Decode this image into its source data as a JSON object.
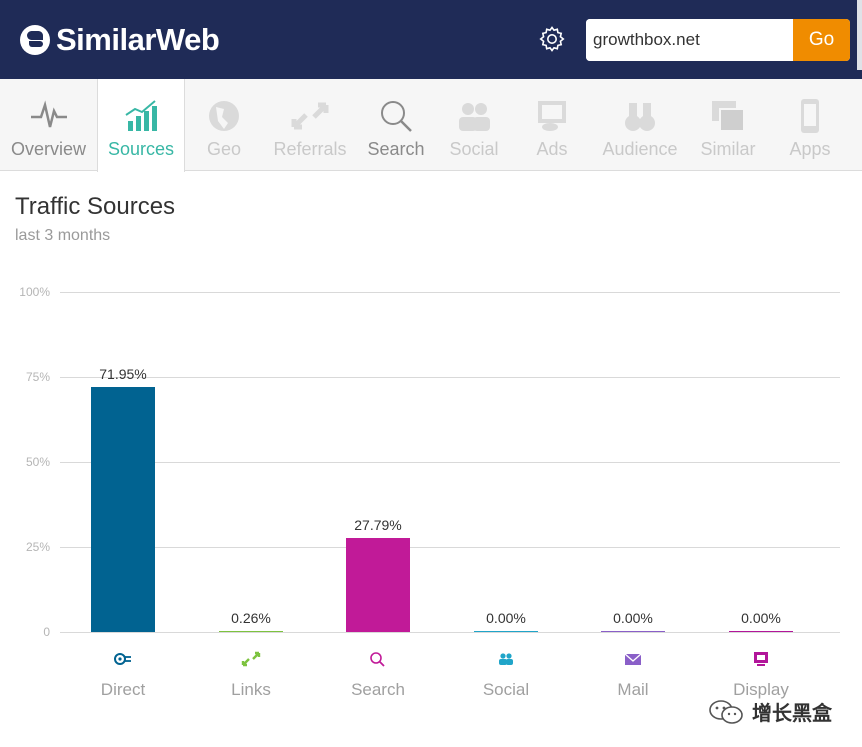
{
  "header": {
    "brand": "SimilarWeb",
    "search_value": "growthbox.net",
    "go_label": "Go"
  },
  "tabs": [
    {
      "label": "Overview",
      "icon": "pulse-icon",
      "state": "enabled"
    },
    {
      "label": "Sources",
      "icon": "bar-chart-icon",
      "state": "active"
    },
    {
      "label": "Geo",
      "icon": "globe-icon",
      "state": "disabled"
    },
    {
      "label": "Referrals",
      "icon": "arrows-icon",
      "state": "disabled"
    },
    {
      "label": "Search",
      "icon": "magnifier-icon",
      "state": "enabled"
    },
    {
      "label": "Social",
      "icon": "people-icon",
      "state": "disabled"
    },
    {
      "label": "Ads",
      "icon": "ads-icon",
      "state": "disabled"
    },
    {
      "label": "Audience",
      "icon": "binoculars-icon",
      "state": "disabled"
    },
    {
      "label": "Similar",
      "icon": "windows-icon",
      "state": "disabled"
    },
    {
      "label": "Apps",
      "icon": "phone-icon",
      "state": "disabled"
    }
  ],
  "section": {
    "title": "Traffic Sources",
    "subtitle": "last 3 months"
  },
  "colors": {
    "header_bg": "#1f2b57",
    "go_button": "#f08c00",
    "active_tab": "#38b7a5"
  },
  "chart_data": {
    "type": "bar",
    "categories": [
      "Direct",
      "Links",
      "Search",
      "Social",
      "Mail",
      "Display"
    ],
    "values": [
      71.95,
      0.26,
      27.79,
      0.0,
      0.0,
      0.0
    ],
    "value_labels": [
      "71.95%",
      "0.26%",
      "27.79%",
      "0.00%",
      "0.00%",
      "0.00%"
    ],
    "colors": [
      "#016391",
      "#7dc33f",
      "#c11a98",
      "#20a5c9",
      "#8a5fc8",
      "#b2169a"
    ],
    "category_icons": [
      "direct-icon",
      "links-icon",
      "search-icon",
      "social-icon",
      "mail-icon",
      "display-icon"
    ],
    "yticks": [
      "100%",
      "75%",
      "50%",
      "25%",
      "0"
    ],
    "ylim": [
      0,
      100
    ],
    "grid": true
  },
  "watermark": {
    "text": "增长黑盒"
  }
}
